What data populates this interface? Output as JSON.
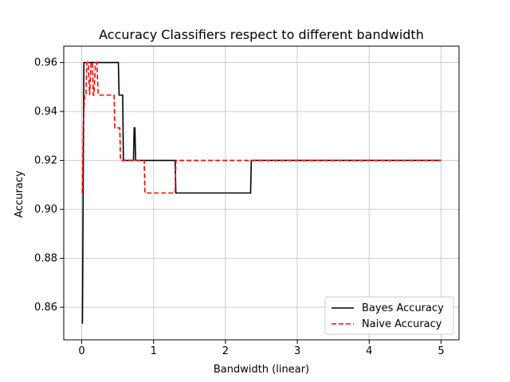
{
  "chart_data": {
    "type": "line",
    "title": "Accuracy Classifiers respect to different bandwidth",
    "xlabel": "Bandwidth (linear)",
    "ylabel": "Accuracy",
    "xlim": [
      -0.25,
      5.25
    ],
    "ylim": [
      0.8467,
      0.9667
    ],
    "xticks": [
      0,
      1,
      2,
      3,
      4,
      5
    ],
    "xtick_labels": [
      "0",
      "1",
      "2",
      "3",
      "4",
      "5"
    ],
    "yticks": [
      0.86,
      0.88,
      0.9,
      0.92,
      0.94,
      0.96
    ],
    "ytick_labels": [
      "0.86",
      "0.88",
      "0.90",
      "0.92",
      "0.94",
      "0.96"
    ],
    "grid": true,
    "legend_position": "bottom-right",
    "series": [
      {
        "name": "Bayes Accuracy",
        "color": "#000000",
        "dash": "solid",
        "x": [
          0.01,
          0.03,
          0.05,
          0.15,
          0.25,
          0.35,
          0.45,
          0.51,
          0.52,
          0.57,
          0.58,
          0.72,
          0.73,
          0.74,
          0.75,
          1.3,
          1.31,
          2.35,
          2.36,
          3.0,
          4.0,
          5.0
        ],
        "y": [
          0.8533,
          0.96,
          0.96,
          0.96,
          0.96,
          0.96,
          0.96,
          0.96,
          0.9467,
          0.9467,
          0.92,
          0.92,
          0.9333,
          0.9333,
          0.92,
          0.92,
          0.9067,
          0.9067,
          0.92,
          0.92,
          0.92,
          0.92
        ]
      },
      {
        "name": "Naive Accuracy",
        "color": "#ff0000",
        "dash": "dashed",
        "x": [
          0.01,
          0.02,
          0.04,
          0.06,
          0.07,
          0.09,
          0.11,
          0.13,
          0.15,
          0.16,
          0.17,
          0.19,
          0.21,
          0.23,
          0.25,
          0.35,
          0.45,
          0.46,
          0.53,
          0.54,
          0.87,
          0.88,
          1.3,
          1.31,
          2.0,
          3.0,
          4.0,
          5.0
        ],
        "y": [
          0.9067,
          0.9333,
          0.9467,
          0.9467,
          0.96,
          0.96,
          0.9467,
          0.96,
          0.96,
          0.9467,
          0.9467,
          0.96,
          0.96,
          0.9467,
          0.9467,
          0.9467,
          0.9467,
          0.9333,
          0.9333,
          0.92,
          0.92,
          0.9067,
          0.9067,
          0.92,
          0.92,
          0.92,
          0.92,
          0.92
        ]
      }
    ]
  }
}
